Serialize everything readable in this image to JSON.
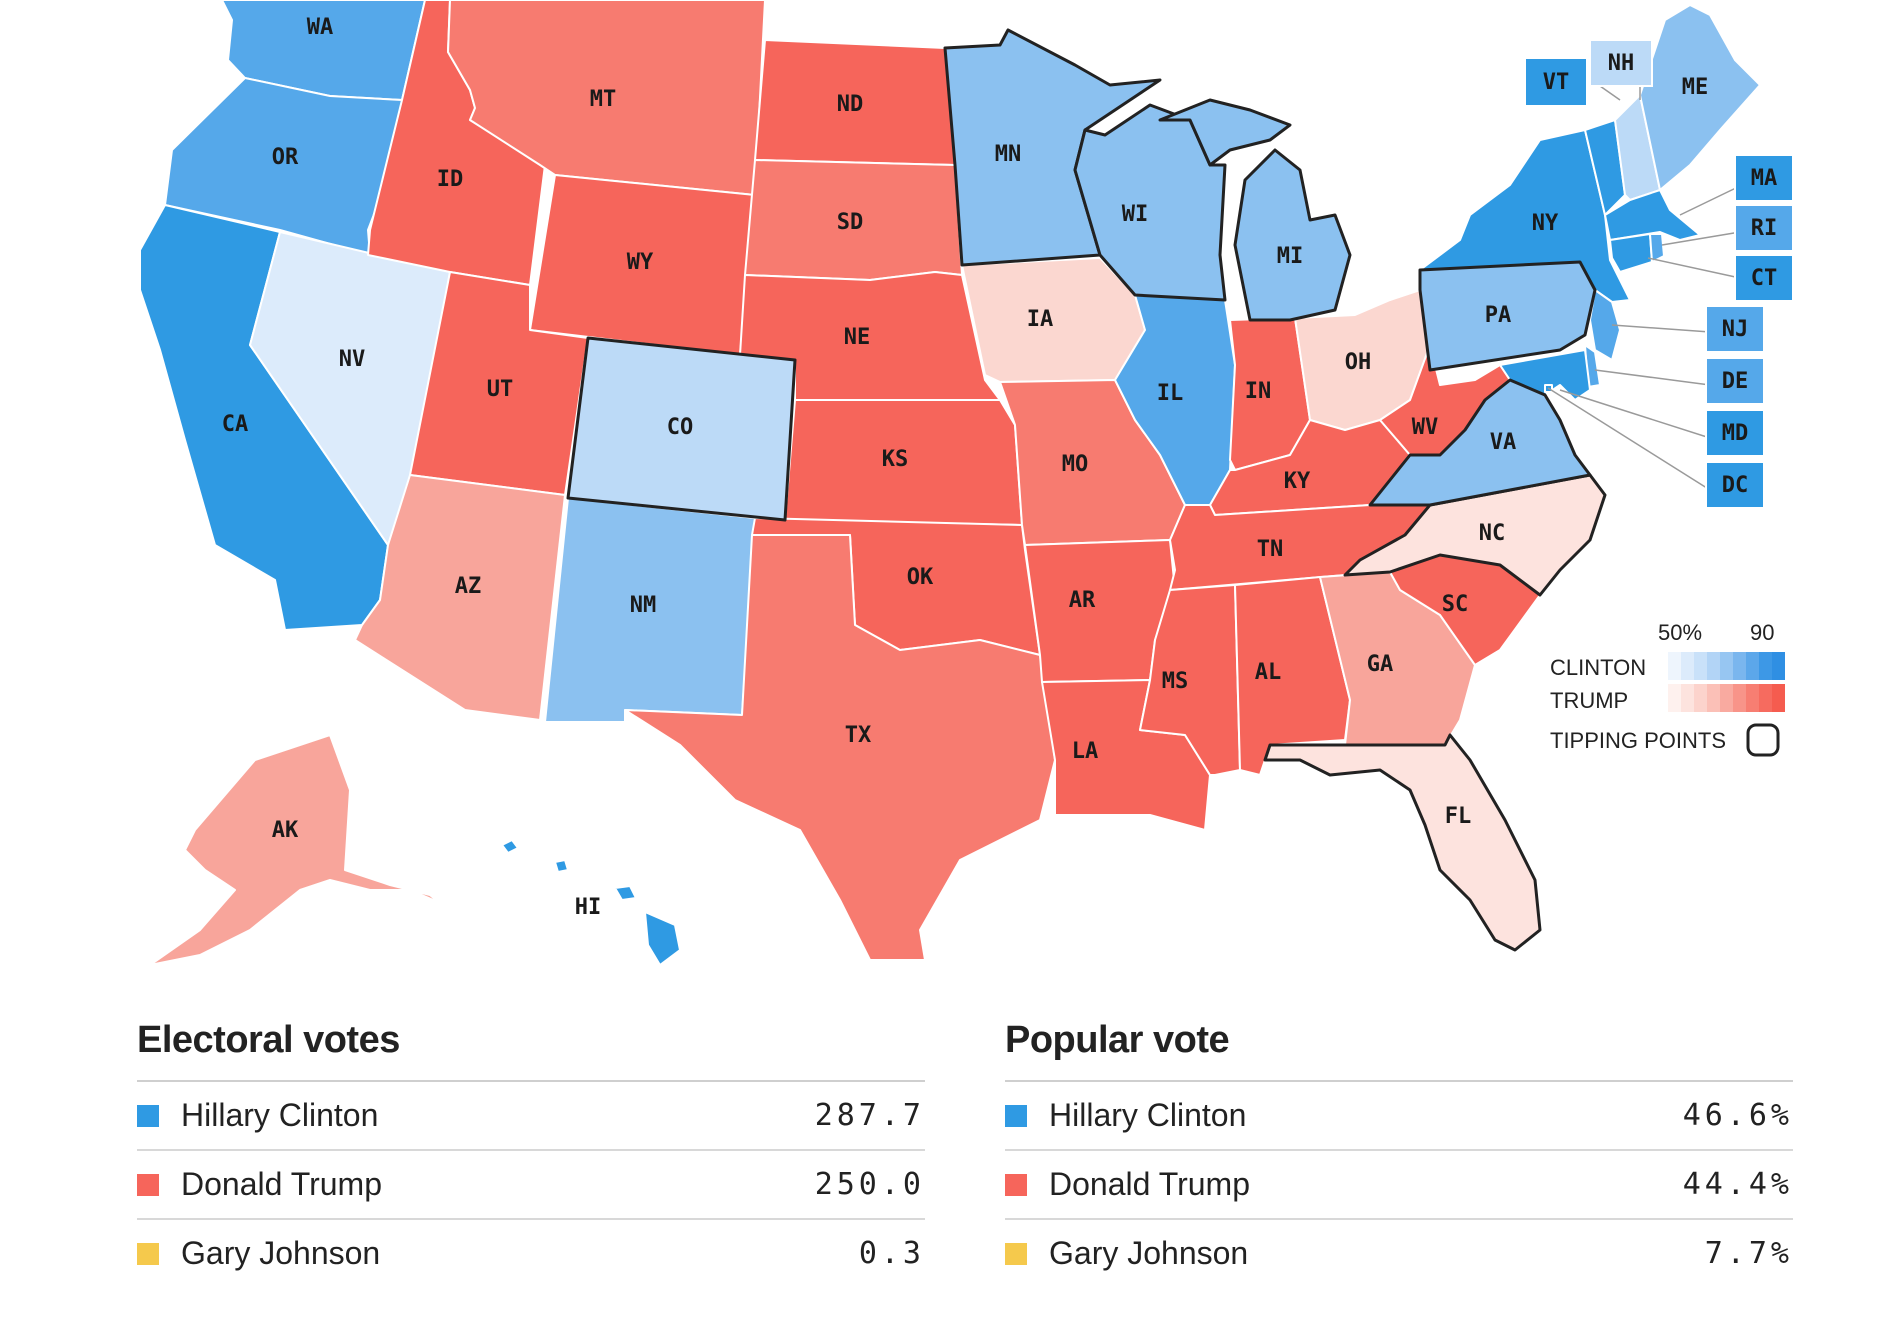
{
  "map": {
    "colors": {
      "d_strong": "#2f9ae3",
      "d_mid": "#55a8ea",
      "d_light": "#8bc1f0",
      "d_pale": "#bcdaf7",
      "d_faint": "#dcebfb",
      "r_strong": "#f6655b",
      "r_mid": "#f77b70",
      "r_light": "#f8a59b",
      "r_pale": "#fbd7d0",
      "r_faint": "#fde3de"
    },
    "states": [
      {
        "code": "WA",
        "fill": "d_mid",
        "tipping": false
      },
      {
        "code": "OR",
        "fill": "d_mid",
        "tipping": false
      },
      {
        "code": "CA",
        "fill": "d_strong",
        "tipping": false
      },
      {
        "code": "NV",
        "fill": "d_faint",
        "tipping": false
      },
      {
        "code": "ID",
        "fill": "r_strong",
        "tipping": false
      },
      {
        "code": "MT",
        "fill": "r_mid",
        "tipping": false
      },
      {
        "code": "WY",
        "fill": "r_strong",
        "tipping": false
      },
      {
        "code": "UT",
        "fill": "r_strong",
        "tipping": false
      },
      {
        "code": "CO",
        "fill": "d_pale",
        "tipping": true
      },
      {
        "code": "AZ",
        "fill": "r_light",
        "tipping": false
      },
      {
        "code": "NM",
        "fill": "d_light",
        "tipping": false
      },
      {
        "code": "ND",
        "fill": "r_strong",
        "tipping": false
      },
      {
        "code": "SD",
        "fill": "r_mid",
        "tipping": false
      },
      {
        "code": "NE",
        "fill": "r_strong",
        "tipping": false
      },
      {
        "code": "KS",
        "fill": "r_strong",
        "tipping": false
      },
      {
        "code": "OK",
        "fill": "r_strong",
        "tipping": false
      },
      {
        "code": "TX",
        "fill": "r_mid",
        "tipping": false
      },
      {
        "code": "MN",
        "fill": "d_light",
        "tipping": true
      },
      {
        "code": "IA",
        "fill": "r_pale",
        "tipping": false
      },
      {
        "code": "MO",
        "fill": "r_mid",
        "tipping": false
      },
      {
        "code": "AR",
        "fill": "r_strong",
        "tipping": false
      },
      {
        "code": "LA",
        "fill": "r_strong",
        "tipping": false
      },
      {
        "code": "WI",
        "fill": "d_light",
        "tipping": true
      },
      {
        "code": "IL",
        "fill": "d_mid",
        "tipping": false
      },
      {
        "code": "MI",
        "fill": "d_light",
        "tipping": true
      },
      {
        "code": "IN",
        "fill": "r_strong",
        "tipping": false
      },
      {
        "code": "OH",
        "fill": "r_pale",
        "tipping": false
      },
      {
        "code": "KY",
        "fill": "r_strong",
        "tipping": false
      },
      {
        "code": "TN",
        "fill": "r_strong",
        "tipping": false
      },
      {
        "code": "MS",
        "fill": "r_strong",
        "tipping": false
      },
      {
        "code": "AL",
        "fill": "r_strong",
        "tipping": false
      },
      {
        "code": "GA",
        "fill": "r_light",
        "tipping": false
      },
      {
        "code": "FL",
        "fill": "r_faint",
        "tipping": true
      },
      {
        "code": "SC",
        "fill": "r_strong",
        "tipping": false
      },
      {
        "code": "NC",
        "fill": "r_faint",
        "tipping": true
      },
      {
        "code": "VA",
        "fill": "d_light",
        "tipping": true
      },
      {
        "code": "WV",
        "fill": "r_strong",
        "tipping": false
      },
      {
        "code": "PA",
        "fill": "d_light",
        "tipping": true
      },
      {
        "code": "NY",
        "fill": "d_strong",
        "tipping": false
      },
      {
        "code": "ME",
        "fill": "d_light",
        "tipping": false
      },
      {
        "code": "AK",
        "fill": "r_light",
        "tipping": false
      },
      {
        "code": "HI",
        "fill": "d_strong",
        "tipping": false
      },
      {
        "code": "NH",
        "fill": "d_pale",
        "tipping": false
      },
      {
        "code": "VT",
        "fill": "d_strong",
        "tipping": false
      },
      {
        "code": "MA",
        "fill": "d_strong",
        "tipping": false
      },
      {
        "code": "RI",
        "fill": "d_mid",
        "tipping": false
      },
      {
        "code": "CT",
        "fill": "d_strong",
        "tipping": false
      },
      {
        "code": "NJ",
        "fill": "d_mid",
        "tipping": false
      },
      {
        "code": "DE",
        "fill": "d_mid",
        "tipping": false
      },
      {
        "code": "MD",
        "fill": "d_strong",
        "tipping": false
      },
      {
        "code": "DC",
        "fill": "d_strong",
        "tipping": false
      }
    ],
    "legend": {
      "pct_low": "50%",
      "pct_high": "90",
      "clinton_label": "CLINTON",
      "trump_label": "TRUMP",
      "tipping_label": "TIPPING POINTS",
      "clinton_scale": [
        "#eef5fd",
        "#dcebfb",
        "#c9e1f9",
        "#b2d4f6",
        "#97c6f2",
        "#7ab6ee",
        "#5ca7ea",
        "#3d98e6",
        "#2f8fe3"
      ],
      "trump_scale": [
        "#fef1ee",
        "#fde3de",
        "#fcd3cc",
        "#fbc0b7",
        "#f9aaa0",
        "#f89489",
        "#f77e72",
        "#f66b5f",
        "#f55c4f"
      ]
    }
  },
  "electoral": {
    "title": "Electoral votes",
    "rows": [
      {
        "name": "Hillary Clinton",
        "value": "287.7",
        "color": "#2f9ae3"
      },
      {
        "name": "Donald Trump",
        "value": "250.0",
        "color": "#f6655b"
      },
      {
        "name": "Gary Johnson",
        "value": "0.3",
        "color": "#f5c94c"
      }
    ]
  },
  "popular": {
    "title": "Popular vote",
    "rows": [
      {
        "name": "Hillary Clinton",
        "value": "46.6%",
        "color": "#2f9ae3"
      },
      {
        "name": "Donald Trump",
        "value": "44.4%",
        "color": "#f6655b"
      },
      {
        "name": "Gary Johnson",
        "value": "7.7%",
        "color": "#f5c94c"
      }
    ]
  }
}
